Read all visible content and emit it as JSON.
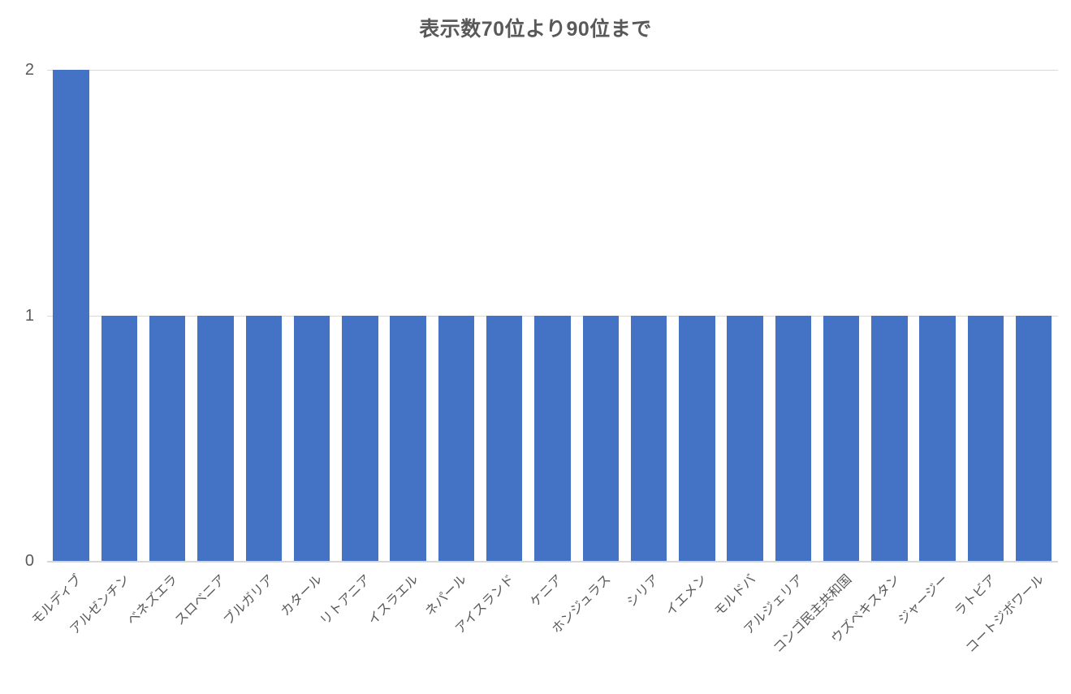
{
  "chart_data": {
    "type": "bar",
    "title": "表示数70位より90位まで",
    "categories": [
      "モルディブ",
      "アルゼンチン",
      "ベネズエラ",
      "スロベニア",
      "ブルガリア",
      "カタール",
      "リトアニア",
      "イスラエル",
      "ネパール",
      "アイスランド",
      "ケニア",
      "ホンジュラス",
      "シリア",
      "イエメン",
      "モルドバ",
      "アルジェリア",
      "コンゴ民主共和国",
      "ウズベキスタン",
      "ジャージー",
      "ラトビア",
      "コートジボワール"
    ],
    "values": [
      2,
      1,
      1,
      1,
      1,
      1,
      1,
      1,
      1,
      1,
      1,
      1,
      1,
      1,
      1,
      1,
      1,
      1,
      1,
      1,
      1
    ],
    "xlabel": "",
    "ylabel": "",
    "ylim": [
      0,
      2
    ],
    "yticks": [
      0,
      1,
      2
    ],
    "grid": true,
    "legend_position": "none",
    "bar_color": "#4472C4",
    "gridline_color": "#D9D9D9",
    "axis_line_color": "#D6D6D6",
    "text_color": "#595959"
  }
}
